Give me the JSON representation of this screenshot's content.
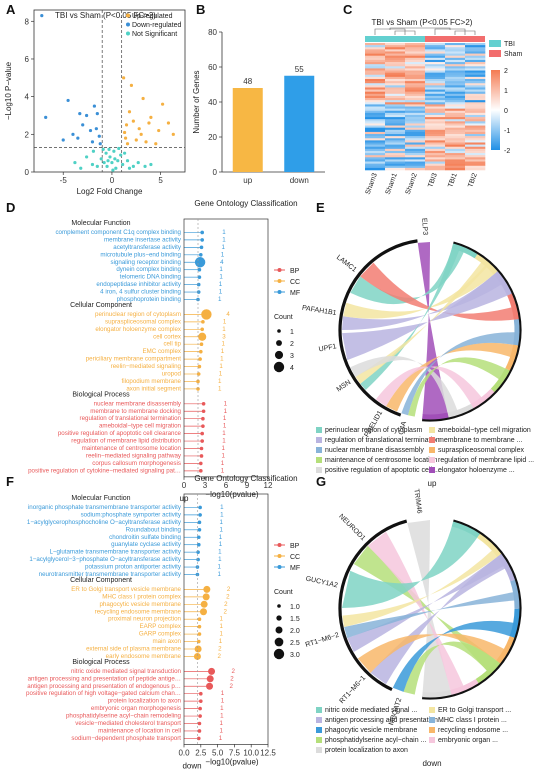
{
  "panels": {
    "A": "A",
    "B": "B",
    "C": "C",
    "D": "D",
    "E": "E",
    "F": "F",
    "G": "G"
  },
  "chart_data": [
    {
      "id": "A",
      "type": "scatter",
      "title": "TBI vs Sham (P<0.05 FC>2)",
      "xlabel": "Log2 Fold Change",
      "ylabel": "−Log10 P−value",
      "xlim": [
        -8,
        7.5
      ],
      "ylim": [
        0,
        8.6
      ],
      "x_ticks": [
        -5,
        0,
        5
      ],
      "y_ticks": [
        0,
        2,
        4,
        6,
        8
      ],
      "threshold_lines": {
        "x": [
          -1,
          1
        ],
        "y": 1.3
      },
      "legend_position": "top-right",
      "series": [
        {
          "name": "Up-regulated",
          "color": "#f5b042",
          "points": [
            [
              5.2,
              3.6
            ],
            [
              4.0,
              2.9
            ],
            [
              2.0,
              4.6
            ],
            [
              1.5,
              2.5
            ],
            [
              3.0,
              2.0
            ],
            [
              2.5,
              1.7
            ],
            [
              4.8,
              2.2
            ],
            [
              6.3,
              2.0
            ],
            [
              1.8,
              3.2
            ],
            [
              3.5,
              1.6
            ],
            [
              2.2,
              2.7
            ],
            [
              1.4,
              1.8
            ],
            [
              3.2,
              3.9
            ],
            [
              4.5,
              1.5
            ],
            [
              5.8,
              2.6
            ],
            [
              1.6,
              1.5
            ],
            [
              2.8,
              2.3
            ],
            [
              1.2,
              5.0
            ],
            [
              3.8,
              2.6
            ],
            [
              1.3,
              2.1
            ]
          ]
        },
        {
          "name": "Down-regulated",
          "color": "#3a8fd6",
          "points": [
            [
              -6.8,
              2.9
            ],
            [
              -4.5,
              3.8
            ],
            [
              -3.5,
              1.8
            ],
            [
              -2.2,
              2.2
            ],
            [
              -1.5,
              3.1
            ],
            [
              -1.3,
              1.9
            ],
            [
              -3.0,
              2.5
            ],
            [
              -2.0,
              1.6
            ],
            [
              -2.6,
              3.0
            ],
            [
              -4.0,
              2.0
            ],
            [
              -1.6,
              2.3
            ],
            [
              -5.0,
              1.7
            ],
            [
              -1.8,
              3.5
            ],
            [
              -1.2,
              1.5
            ],
            [
              -3.3,
              3.1
            ],
            [
              -7.2,
              8.3
            ]
          ]
        },
        {
          "name": "Not Significant",
          "color": "#4fd1c5",
          "points": [
            [
              -0.5,
              0.3
            ],
            [
              0.4,
              0.2
            ],
            [
              -0.2,
              0.8
            ],
            [
              0.6,
              0.6
            ],
            [
              -0.8,
              0.5
            ],
            [
              0.9,
              0.9
            ],
            [
              0.2,
              1.1
            ],
            [
              -0.6,
              1.0
            ],
            [
              1.1,
              0.4
            ],
            [
              -1.1,
              0.7
            ],
            [
              -1.5,
              0.3
            ],
            [
              1.6,
              0.6
            ],
            [
              -2.0,
              0.4
            ],
            [
              2.2,
              0.3
            ],
            [
              -2.6,
              0.8
            ],
            [
              2.7,
              0.5
            ],
            [
              -3.2,
              0.2
            ],
            [
              3.4,
              0.3
            ],
            [
              0.0,
              0.5
            ],
            [
              -0.3,
              1.2
            ],
            [
              0.7,
              1.25
            ],
            [
              -0.9,
              1.2
            ],
            [
              1.3,
              1.0
            ],
            [
              -1.9,
              1.1
            ],
            [
              1.8,
              0.2
            ],
            [
              -3.8,
              0.5
            ],
            [
              4.0,
              0.4
            ],
            [
              0.1,
              0.1
            ],
            [
              -0.4,
              0.6
            ],
            [
              0.3,
              0.7
            ]
          ]
        }
      ]
    },
    {
      "id": "B",
      "type": "bar",
      "categories": [
        "up",
        "down"
      ],
      "values": [
        48,
        55
      ],
      "colors": [
        "#f7b744",
        "#2f9ee8"
      ],
      "ylabel": "Number of Genes",
      "ylim": [
        0,
        80
      ],
      "y_ticks": [
        0,
        20,
        40,
        60,
        80
      ]
    },
    {
      "id": "C",
      "type": "heatmap",
      "title": "TBI vs Sham (P<0.05 FC>2)",
      "columns": [
        "Sham3",
        "Sham1",
        "Sham2",
        "TBI3",
        "TBI1",
        "TBI2"
      ],
      "groups": [
        {
          "name": "TBI",
          "color": "#63d0d0"
        },
        {
          "name": "Sham",
          "color": "#f26d6d"
        }
      ],
      "scale": [
        -2,
        2
      ],
      "scale_ticks": [
        2,
        1,
        0,
        -1,
        -2
      ],
      "colors": [
        "#1f8fe6",
        "#ffffff",
        "#f47b52"
      ]
    },
    {
      "id": "D",
      "type": "scatter",
      "title": "Gene Ontology Classification",
      "xlabel": "−log10(pvalue)",
      "xlim": [
        0,
        12
      ],
      "x_ticks": [
        0,
        3,
        6,
        9,
        12
      ],
      "bottom_label": "up",
      "legend": [
        {
          "name": "BP",
          "color": "#e8595a"
        },
        {
          "name": "CC",
          "color": "#f5b042"
        },
        {
          "name": "MF",
          "color": "#3a9ad9"
        }
      ],
      "size_legend_title": "Count",
      "size_legend_values": [
        1,
        2,
        3,
        4
      ],
      "sections": [
        {
          "header": "Molecular Function",
          "color": "#3a9ad9",
          "items": [
            {
              "term": "complement component C1q complex binding",
              "value": 2.6,
              "count": 1
            },
            {
              "term": "membrane insertase activity",
              "value": 2.6,
              "count": 1
            },
            {
              "term": "acetyltransferase activity",
              "value": 2.5,
              "count": 1
            },
            {
              "term": "microtubule plus−end binding",
              "value": 2.4,
              "count": 1
            },
            {
              "term": "signaling receptor binding",
              "value": 2.3,
              "count": 4
            },
            {
              "term": "dynein complex binding",
              "value": 2.2,
              "count": 1
            },
            {
              "term": "telomeric DNA binding",
              "value": 2.2,
              "count": 1
            },
            {
              "term": "endopeptidase inhibitor activity",
              "value": 2.1,
              "count": 1
            },
            {
              "term": "4 iron, 4 sulfur cluster binding",
              "value": 2.1,
              "count": 1
            },
            {
              "term": "phosphoprotein binding",
              "value": 2.0,
              "count": 1
            }
          ]
        },
        {
          "header": "Cellular Component",
          "color": "#f5b042",
          "items": [
            {
              "term": "perinuclear region of cytoplasm",
              "value": 3.2,
              "count": 4
            },
            {
              "term": "supraspliceosomal complex",
              "value": 2.7,
              "count": 1
            },
            {
              "term": "elongator holoenzyme complex",
              "value": 2.6,
              "count": 1
            },
            {
              "term": "cell cortex",
              "value": 2.6,
              "count": 3
            },
            {
              "term": "cell tip",
              "value": 2.5,
              "count": 1
            },
            {
              "term": "EMC complex",
              "value": 2.4,
              "count": 1
            },
            {
              "term": "periciliary membrane compartment",
              "value": 2.3,
              "count": 1
            },
            {
              "term": "reelin−mediated signaling",
              "value": 2.2,
              "count": 1
            },
            {
              "term": "uropod",
              "value": 2.1,
              "count": 1
            },
            {
              "term": "filopodium membrane",
              "value": 2.0,
              "count": 1
            },
            {
              "term": "axon initial segment",
              "value": 2.0,
              "count": 1
            }
          ]
        },
        {
          "header": "Biological Process",
          "color": "#e8595a",
          "items": [
            {
              "term": "nuclear membrane disassembly",
              "value": 2.8,
              "count": 1
            },
            {
              "term": "membrane to membrane docking",
              "value": 2.8,
              "count": 1
            },
            {
              "term": "regulation of translational termination",
              "value": 2.7,
              "count": 1
            },
            {
              "term": "ameboidal−type cell migration",
              "value": 2.7,
              "count": 1
            },
            {
              "term": "positive regulation of apoptotic cell clearance",
              "value": 2.6,
              "count": 1
            },
            {
              "term": "regulation of membrane lipid distribution",
              "value": 2.6,
              "count": 1
            },
            {
              "term": "maintenance of centrosome location",
              "value": 2.5,
              "count": 1
            },
            {
              "term": "reelin−mediated signaling pathway",
              "value": 2.5,
              "count": 1
            },
            {
              "term": "corpus callosum morphogenesis",
              "value": 2.4,
              "count": 1
            },
            {
              "term": "positive regulation of cytokine−mediated signaling pat…",
              "value": 2.4,
              "count": 1
            }
          ]
        }
      ]
    },
    {
      "id": "E",
      "type": "chord",
      "genes": [
        "ELP3",
        "LAMC1",
        "PAFAH1B1",
        "UPF1",
        "MSN",
        "PRELID1",
        "C4A"
      ],
      "bottom_label": "up",
      "terms": [
        {
          "term": "perinuclear region of cytoplasm",
          "color": "#7fd3c4"
        },
        {
          "term": "ameboidal−type cell migration",
          "color": "#f3e5a1"
        },
        {
          "term": "regulation of translational termination",
          "color": "#b9b4e0"
        },
        {
          "term": "membrane to membrane ...",
          "color": "#f27d72"
        },
        {
          "term": "nuclear membrane disassembly",
          "color": "#87b3d8"
        },
        {
          "term": "supraspliceosomal complex",
          "color": "#f8b76a"
        },
        {
          "term": "maintenance of centrosome location",
          "color": "#b5df7a"
        },
        {
          "term": "regulation of membrane lipid ...",
          "color": "#f6c7dd"
        },
        {
          "term": "positive regulation of apoptotic cell ...",
          "color": "#dcdcdc"
        },
        {
          "term": "elongator holoenzyme ...",
          "color": "#a14fb8"
        }
      ]
    },
    {
      "id": "F",
      "type": "scatter",
      "title": "Gene Ontology Classification",
      "xlabel": "−log10(pvalue)",
      "xlim": [
        0,
        12.5
      ],
      "x_ticks": [
        0.0,
        2.5,
        5.0,
        7.5,
        10.0,
        12.5
      ],
      "bottom_label": "down",
      "legend": [
        {
          "name": "BP",
          "color": "#e8595a"
        },
        {
          "name": "CC",
          "color": "#f5b042"
        },
        {
          "name": "MF",
          "color": "#3a9ad9"
        }
      ],
      "size_legend_title": "Count",
      "size_legend_values": [
        1.0,
        1.5,
        2.0,
        2.5,
        3.0
      ],
      "sections": [
        {
          "header": "Molecular Function",
          "color": "#3a9ad9",
          "items": [
            {
              "term": "inorganic phosphate transmembrane transporter activity",
              "value": 2.4,
              "count": 1
            },
            {
              "term": "sodium:phosphate symporter activity",
              "value": 2.4,
              "count": 1
            },
            {
              "term": "1−acylglycerophosphocholine O−acyltransferase activity",
              "value": 2.3,
              "count": 1
            },
            {
              "term": "Roundabout binding",
              "value": 2.3,
              "count": 1
            },
            {
              "term": "chondroitin sulfate binding",
              "value": 2.2,
              "count": 1
            },
            {
              "term": "guanylate cyclase activity",
              "value": 2.2,
              "count": 1
            },
            {
              "term": "L−glutamate transmembrane transporter activity",
              "value": 2.1,
              "count": 1
            },
            {
              "term": "1−acylglycerol−3−phosphate O−acyltransferase activity",
              "value": 2.1,
              "count": 1
            },
            {
              "term": "potassium proton antiporter activity",
              "value": 2.0,
              "count": 1
            },
            {
              "term": "neurotransmitter transmembrane transporter activity",
              "value": 2.0,
              "count": 1
            }
          ]
        },
        {
          "header": "Cellular Component",
          "color": "#f5b042",
          "items": [
            {
              "term": "ER to Golgi transport vesicle membrane",
              "value": 3.4,
              "count": 2
            },
            {
              "term": "MHC class I protein complex",
              "value": 3.3,
              "count": 2
            },
            {
              "term": "phagocytic vesicle membrane",
              "value": 3.0,
              "count": 2
            },
            {
              "term": "recycling endosome membrane",
              "value": 2.9,
              "count": 2
            },
            {
              "term": "proximal neuron projection",
              "value": 2.3,
              "count": 1
            },
            {
              "term": "EARP complex",
              "value": 2.3,
              "count": 1
            },
            {
              "term": "GARP complex",
              "value": 2.3,
              "count": 1
            },
            {
              "term": "main axon",
              "value": 2.2,
              "count": 1
            },
            {
              "term": "external side of plasma membrane",
              "value": 2.1,
              "count": 2
            },
            {
              "term": "early endosome membrane",
              "value": 2.0,
              "count": 2
            }
          ]
        },
        {
          "header": "Biological Process",
          "color": "#e8595a",
          "items": [
            {
              "term": "nitric oxide mediated signal transduction",
              "value": 4.1,
              "count": 2
            },
            {
              "term": "antigen processing and presentation of peptide antige…",
              "value": 3.9,
              "count": 2
            },
            {
              "term": "antigen processing and presentation of endogenous p…",
              "value": 3.8,
              "count": 2
            },
            {
              "term": "positive regulation of high voltage−gated calcium chan…",
              "value": 2.5,
              "count": 1
            },
            {
              "term": "protein localization to axon",
              "value": 2.5,
              "count": 1
            },
            {
              "term": "embryonic organ morphogenesis",
              "value": 2.4,
              "count": 1
            },
            {
              "term": "phosphatidylserine acyl−chain remodeling",
              "value": 2.4,
              "count": 1
            },
            {
              "term": "vesicle−mediated cholesterol transport",
              "value": 2.3,
              "count": 1
            },
            {
              "term": "maintenance of location in cell",
              "value": 2.3,
              "count": 1
            },
            {
              "term": "sodium−dependent phosphate transport",
              "value": 2.2,
              "count": 1
            }
          ]
        }
      ]
    },
    {
      "id": "G",
      "type": "chord",
      "genes": [
        "TRIM46",
        "NEUROD1",
        "GUCY1A2",
        "RT1−M6−2",
        "RT1−M6−1",
        "MBOAT2"
      ],
      "bottom_label": "down",
      "terms": [
        {
          "term": "nitric oxide mediated signal ...",
          "color": "#7fd3c4"
        },
        {
          "term": "ER to Golgi transport ...",
          "color": "#f3e5a1"
        },
        {
          "term": "antigen processing and presentation ...",
          "color": "#b9b4e0"
        },
        {
          "term": "MHC class I protein ...",
          "color": "#87b3d8"
        },
        {
          "term": "phagocytic vesicle membrane",
          "color": "#3a9ad9"
        },
        {
          "term": "recycling endosome ...",
          "color": "#f8b76a"
        },
        {
          "term": "phosphatidylserine acyl−chain ...",
          "color": "#b5df7a"
        },
        {
          "term": "embryonic organ ...",
          "color": "#f6c7dd"
        },
        {
          "term": "protein localization to axon",
          "color": "#dcdcdc"
        }
      ]
    }
  ]
}
